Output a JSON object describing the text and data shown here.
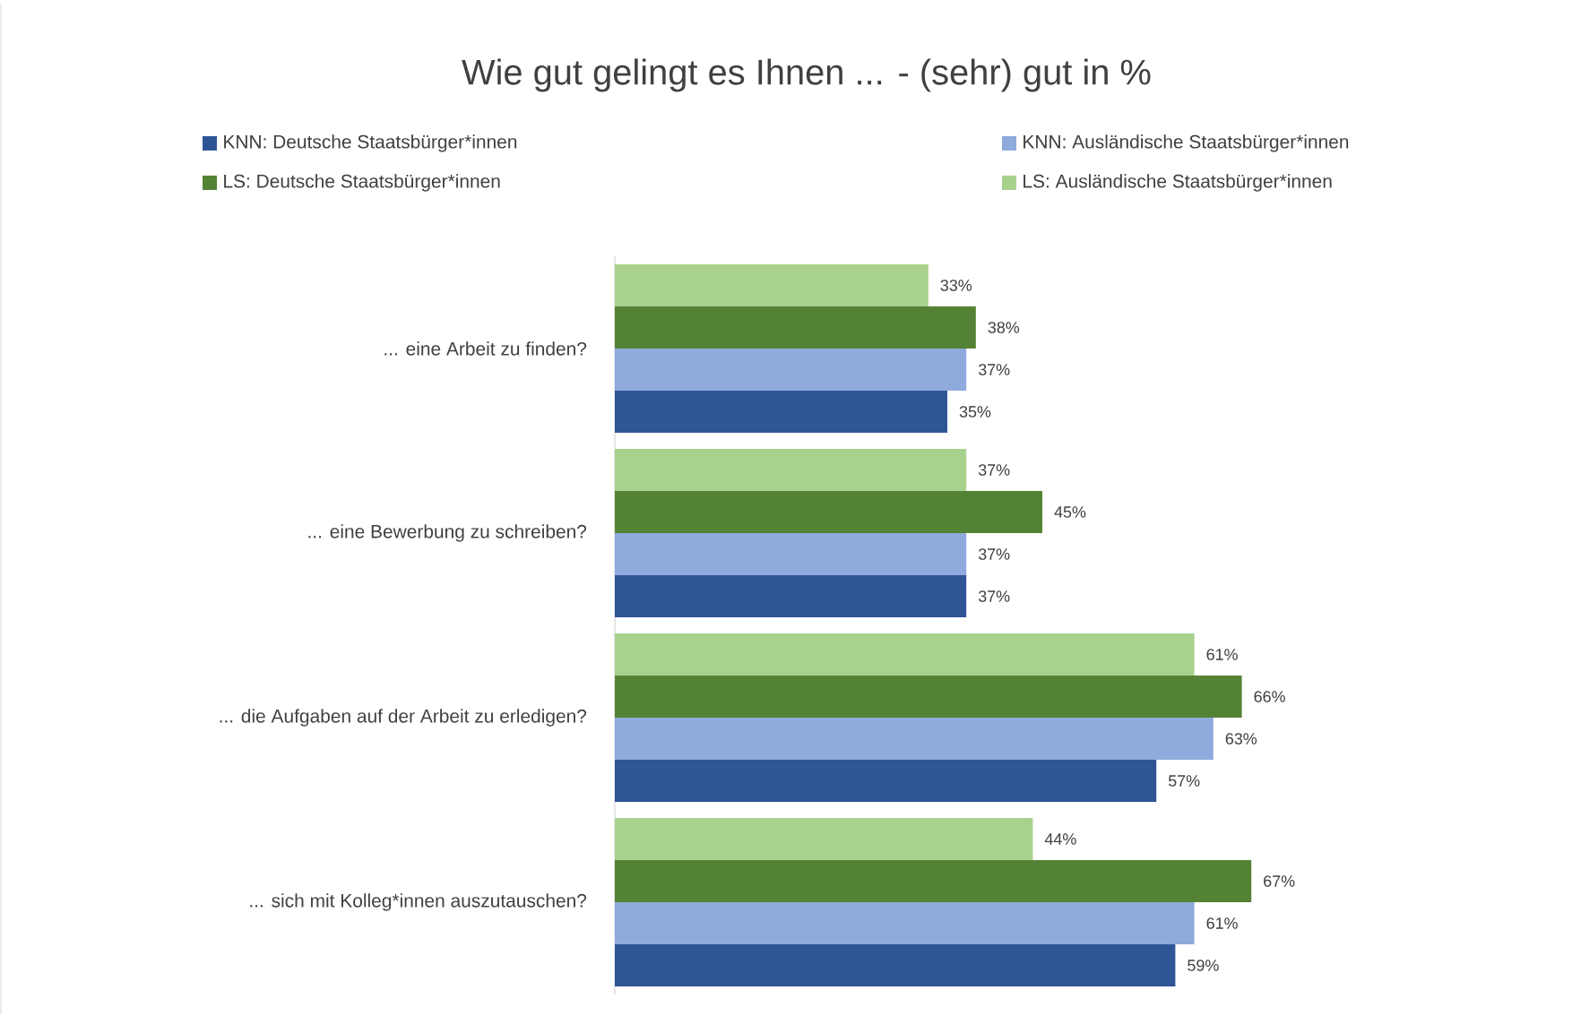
{
  "chart_data": {
    "type": "bar",
    "orientation": "horizontal",
    "title": "Wie gut gelingt es Ihnen ... - (sehr) gut in %",
    "categories": [
      "... eine Arbeit zu finden?",
      "... eine Bewerbung zu schreiben?",
      "... die Aufgaben auf der Arbeit zu erledigen?",
      "... sich mit Kolleg*innen auszutauschen?"
    ],
    "legend": "top",
    "tick_labels": "y",
    "series": [
      {
        "name": "KNN: Deutsche Staatsbürger*innen",
        "color": "#2f5597",
        "values": [
          35,
          37,
          57,
          59
        ],
        "value_labels": [
          "35%",
          "37%",
          "57%",
          "59%"
        ]
      },
      {
        "name": "KNN: Ausländische Staatsbürger*innen",
        "color": "#8faadc",
        "values": [
          37,
          37,
          63,
          61
        ],
        "value_labels": [
          "37%",
          "37%",
          "63%",
          "61%"
        ]
      },
      {
        "name": "LS: Deutsche Staatsbürger*innen",
        "color": "#548235",
        "values": [
          38,
          45,
          66,
          67
        ],
        "value_labels": [
          "38%",
          "45%",
          "66%",
          "67%"
        ]
      },
      {
        "name": "LS: Ausländische Staatsbürger*innen",
        "color": "#a9d18e",
        "values": [
          33,
          37,
          61,
          44
        ],
        "value_labels": [
          "33%",
          "37%",
          "61%",
          "44%"
        ]
      }
    ]
  }
}
